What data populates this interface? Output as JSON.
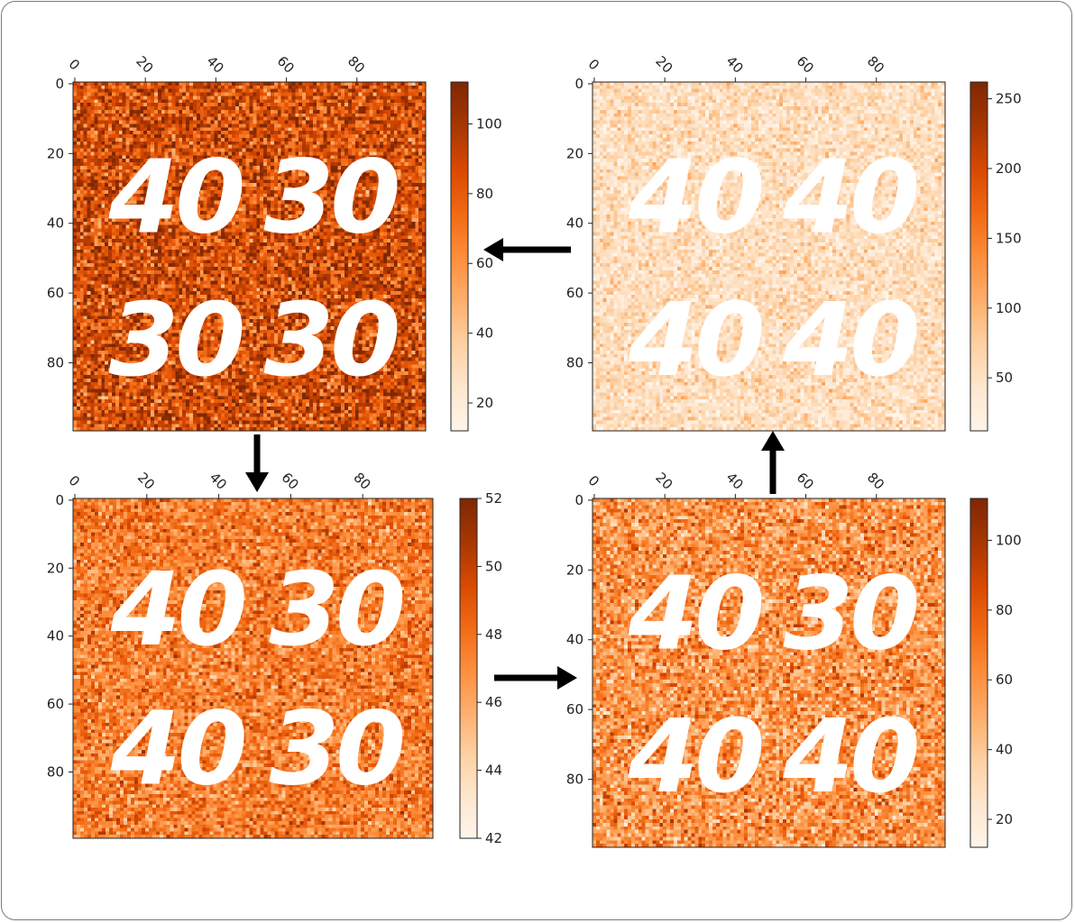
{
  "colormap": {
    "name": "Oranges",
    "stops": [
      "#fff5eb",
      "#fee6ce",
      "#fdd0a2",
      "#fdae6b",
      "#fd8d3c",
      "#f16913",
      "#d94801",
      "#a63603",
      "#7f2704"
    ]
  },
  "chart_data": [
    {
      "type": "heatmap",
      "grid_size": [
        100,
        100
      ],
      "x_ticks": [
        "0",
        "20",
        "40",
        "60",
        "80"
      ],
      "y_ticks": [
        "0",
        "20",
        "40",
        "60",
        "80"
      ],
      "colorbar": {
        "min": 12,
        "max": 112,
        "ticks": [
          "20",
          "40",
          "60",
          "80",
          "100"
        ],
        "tick_values": [
          20,
          40,
          60,
          80,
          100
        ]
      },
      "noise": {
        "mean": 0.74,
        "spread": 0.3
      },
      "overlay_numbers": [
        "40",
        "30",
        "30",
        "30"
      ]
    },
    {
      "type": "heatmap",
      "grid_size": [
        100,
        100
      ],
      "x_ticks": [
        "0",
        "20",
        "40",
        "60",
        "80"
      ],
      "y_ticks": [
        "0",
        "20",
        "40",
        "60",
        "80"
      ],
      "colorbar": {
        "min": 12,
        "max": 262,
        "ticks": [
          "50",
          "100",
          "150",
          "200",
          "250"
        ],
        "tick_values": [
          50,
          100,
          150,
          200,
          250
        ]
      },
      "noise": {
        "mean": 0.17,
        "spread": 0.16
      },
      "overlay_numbers": [
        "40",
        "40",
        "40",
        "40"
      ]
    },
    {
      "type": "heatmap",
      "grid_size": [
        100,
        100
      ],
      "x_ticks": [
        "0",
        "20",
        "40",
        "60",
        "80"
      ],
      "y_ticks": [
        "0",
        "20",
        "40",
        "60",
        "80"
      ],
      "colorbar": {
        "min": 42,
        "max": 52,
        "ticks": [
          "42",
          "44",
          "46",
          "48",
          "50",
          "52"
        ],
        "tick_values": [
          42,
          44,
          46,
          48,
          50,
          52
        ]
      },
      "noise": {
        "mean": 0.55,
        "spread": 0.24
      },
      "overlay_numbers": [
        "40",
        "30",
        "40",
        "30"
      ]
    },
    {
      "type": "heatmap",
      "grid_size": [
        100,
        100
      ],
      "x_ticks": [
        "0",
        "20",
        "40",
        "60",
        "80"
      ],
      "y_ticks": [
        "0",
        "20",
        "40",
        "60",
        "80"
      ],
      "colorbar": {
        "min": 12,
        "max": 112,
        "ticks": [
          "20",
          "40",
          "60",
          "80",
          "100"
        ],
        "tick_values": [
          20,
          40,
          60,
          80,
          100
        ]
      },
      "noise": {
        "mean": 0.47,
        "spread": 0.27
      },
      "overlay_numbers": [
        "40",
        "30",
        "40",
        "40"
      ]
    }
  ],
  "flow_arrows": [
    "right-panel-to-top-left",
    "top-left-to-bottom-left",
    "bottom-left-to-bottom-right",
    "bottom-right-to-top-right"
  ]
}
